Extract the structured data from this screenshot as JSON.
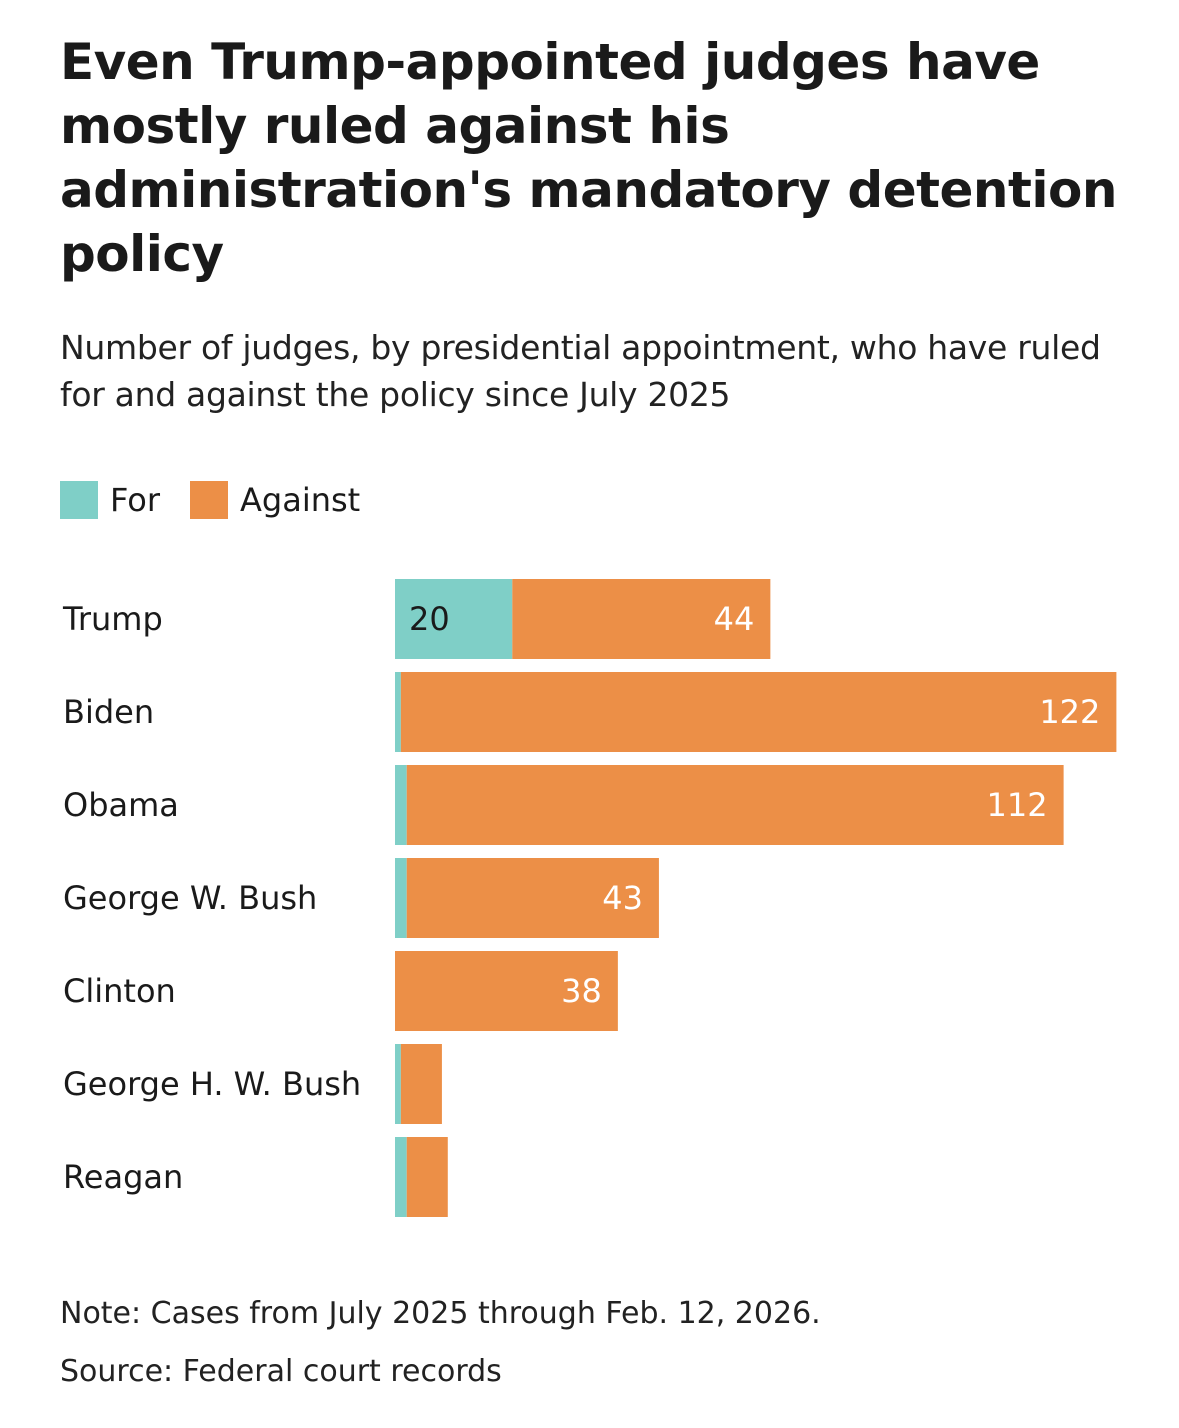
{
  "colors": {
    "for": "#7fcfc7",
    "against": "#ec8f47",
    "text": "#1a1a1a"
  },
  "chart_data": {
    "type": "bar",
    "orientation": "horizontal",
    "stacked": true,
    "title": "Even Trump-appointed judges have mostly ruled against his administration's mandatory detention policy",
    "subtitle": "Number of judges, by presidential appointment, who have ruled for and against the policy since July 2025",
    "categories": [
      "Trump",
      "Biden",
      "Obama",
      "George W. Bush",
      "Clinton",
      "George H. W. Bush",
      "Reagan"
    ],
    "series": [
      {
        "name": "For",
        "values": [
          20,
          1,
          2,
          2,
          0,
          1,
          2
        ],
        "labels": [
          "20",
          "",
          "",
          "",
          "",
          "",
          ""
        ]
      },
      {
        "name": "Against",
        "values": [
          44,
          122,
          112,
          43,
          38,
          7,
          7
        ],
        "labels": [
          "44",
          "122",
          "112",
          "43",
          "38",
          "",
          ""
        ]
      }
    ],
    "xlabel": "",
    "ylabel": "",
    "xlim": [
      0,
      125
    ],
    "grid": false,
    "legend_position": "top-left",
    "note": "Note: Cases from July 2025 through Feb. 12, 2026.",
    "source": "Source: Federal court records"
  }
}
